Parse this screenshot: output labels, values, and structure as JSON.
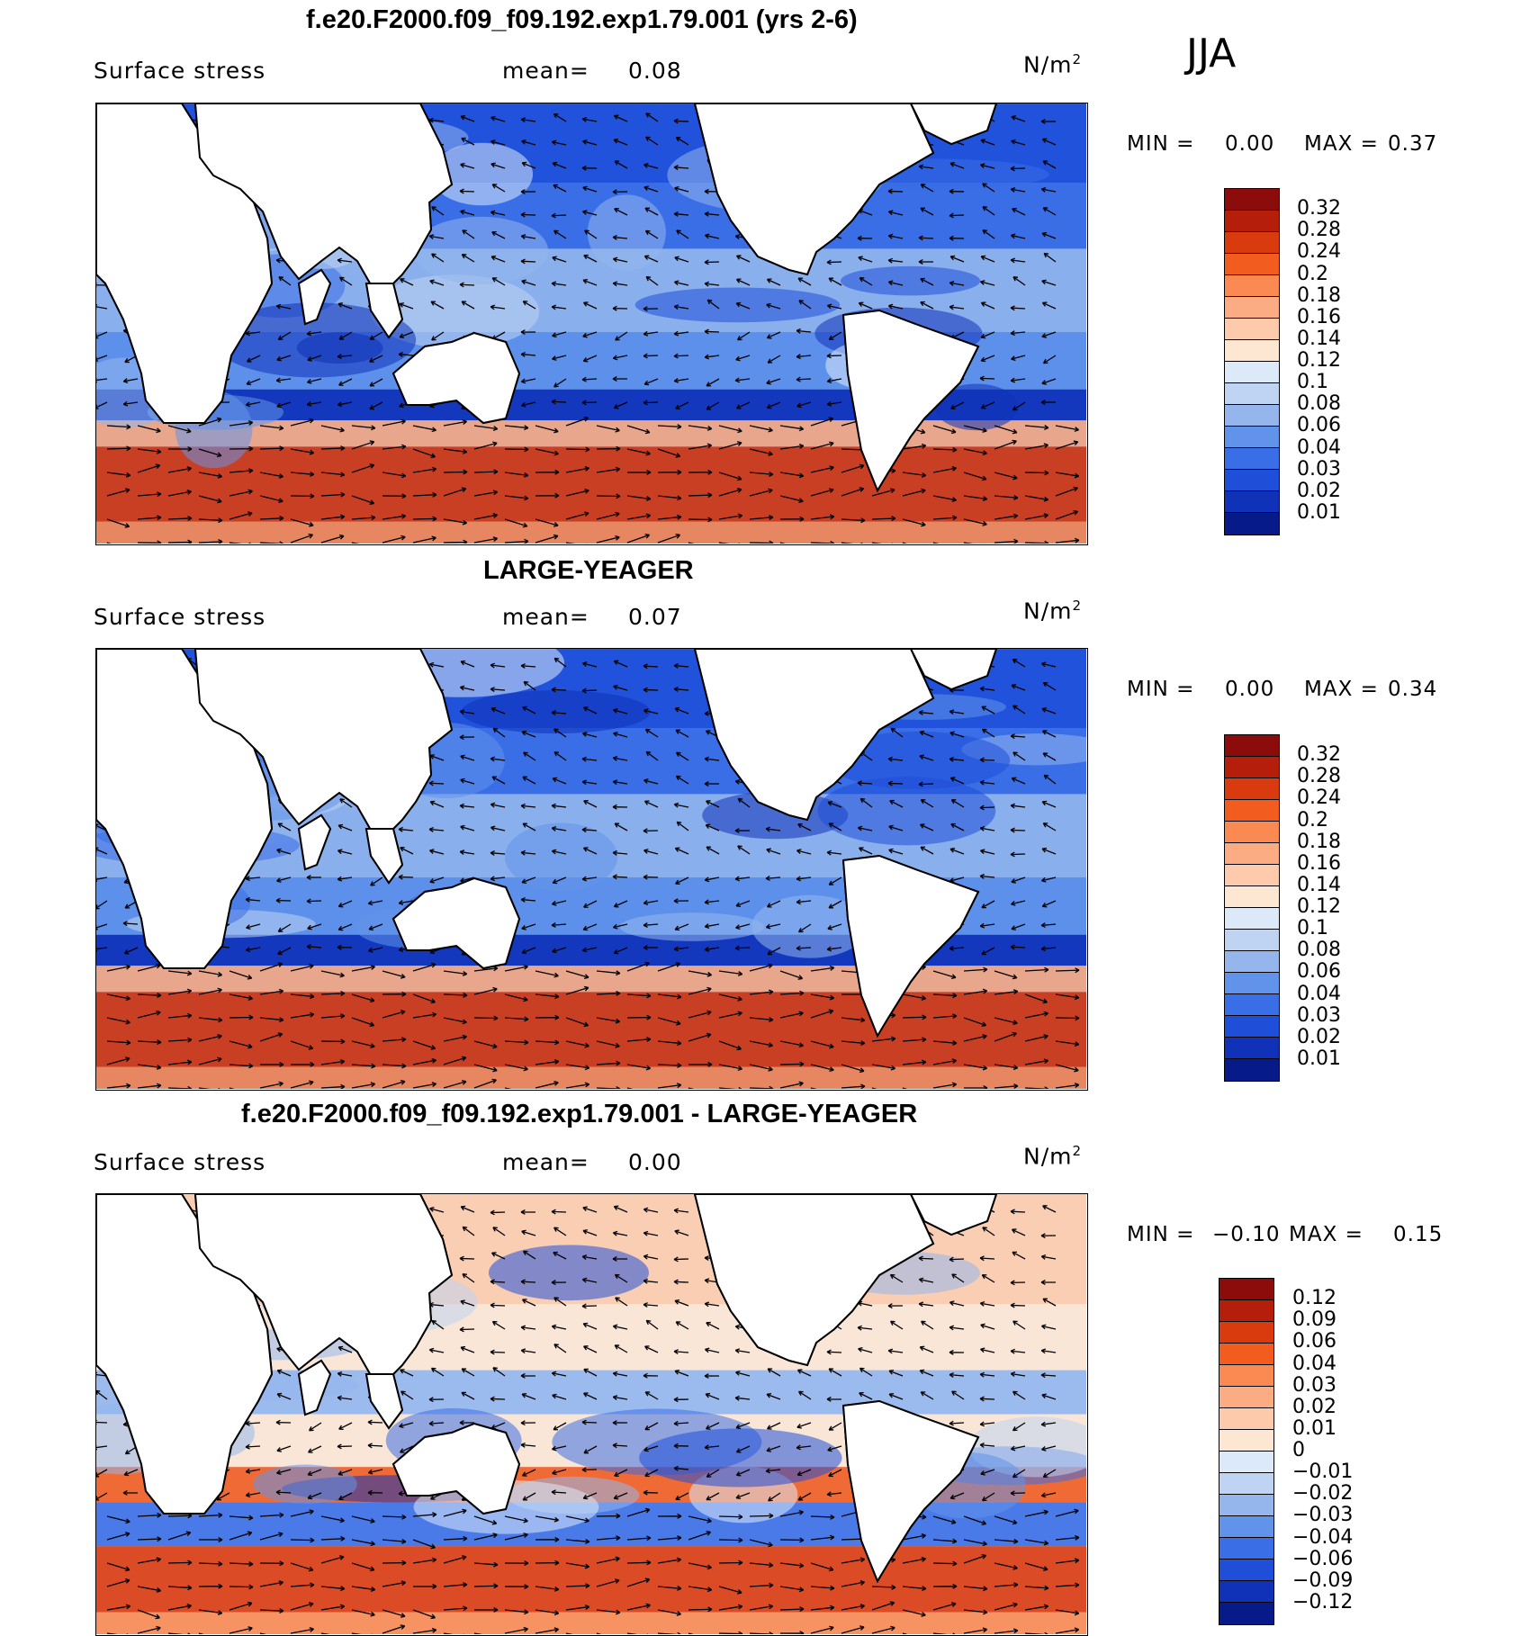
{
  "season": "JJA",
  "panels": [
    {
      "title": "f.e20.F2000.f09_f09.192.exp1.79.001 (yrs 2-6)",
      "variable": "Surface stress",
      "mean_label": "mean=",
      "mean_value": "0.08",
      "unit": "N/m",
      "unit_exp": "2",
      "min_label": "MIN =",
      "min_value": "0.00",
      "max_label": "MAX =",
      "max_value": "0.37",
      "colorbar_ticks": [
        "0.32",
        "0.28",
        "0.24",
        "0.2",
        "0.18",
        "0.16",
        "0.14",
        "0.12",
        "0.1",
        "0.08",
        "0.06",
        "0.04",
        "0.03",
        "0.02",
        "0.01"
      ],
      "colorbar_colors": [
        "#8c0b0b",
        "#b51e0a",
        "#d93a0e",
        "#f25c1f",
        "#fa8a52",
        "#fcac82",
        "#fdcbab",
        "#fde6d2",
        "#dce9f8",
        "#bed4f2",
        "#94b6ed",
        "#6293ea",
        "#3a6ee6",
        "#1f4fd9",
        "#0f32b8",
        "#071a8a"
      ],
      "scheme": "abs"
    },
    {
      "title": "LARGE-YEAGER",
      "variable": "Surface stress",
      "mean_label": "mean=",
      "mean_value": "0.07",
      "unit": "N/m",
      "unit_exp": "2",
      "min_label": "MIN =",
      "min_value": "0.00",
      "max_label": "MAX =",
      "max_value": "0.34",
      "colorbar_ticks": [
        "0.32",
        "0.28",
        "0.24",
        "0.2",
        "0.18",
        "0.16",
        "0.14",
        "0.12",
        "0.1",
        "0.08",
        "0.06",
        "0.04",
        "0.03",
        "0.02",
        "0.01"
      ],
      "colorbar_colors": [
        "#8c0b0b",
        "#b51e0a",
        "#d93a0e",
        "#f25c1f",
        "#fa8a52",
        "#fcac82",
        "#fdcbab",
        "#fde6d2",
        "#dce9f8",
        "#bed4f2",
        "#94b6ed",
        "#6293ea",
        "#3a6ee6",
        "#1f4fd9",
        "#0f32b8",
        "#071a8a"
      ],
      "scheme": "abs"
    },
    {
      "title": "f.e20.F2000.f09_f09.192.exp1.79.001 - LARGE-YEAGER",
      "variable": "Surface stress",
      "mean_label": "mean=",
      "mean_value": "0.00",
      "unit": "N/m",
      "unit_exp": "2",
      "min_label": "MIN =",
      "min_value": "−0.10",
      "max_label": "MAX =",
      "max_value": "0.15",
      "colorbar_ticks": [
        "0.12",
        "0.09",
        "0.06",
        "0.04",
        "0.03",
        "0.02",
        "0.01",
        "0",
        "−0.01",
        "−0.02",
        "−0.03",
        "−0.04",
        "−0.06",
        "−0.09",
        "−0.12"
      ],
      "colorbar_colors": [
        "#8c0b0b",
        "#b51e0a",
        "#d93a0e",
        "#f25c1f",
        "#fa8a52",
        "#fcac82",
        "#fdcbab",
        "#fde6d2",
        "#dce9f8",
        "#bed4f2",
        "#94b6ed",
        "#6293ea",
        "#3a6ee6",
        "#1f4fd9",
        "#0f32b8",
        "#071a8a"
      ],
      "scheme": "diff"
    }
  ]
}
